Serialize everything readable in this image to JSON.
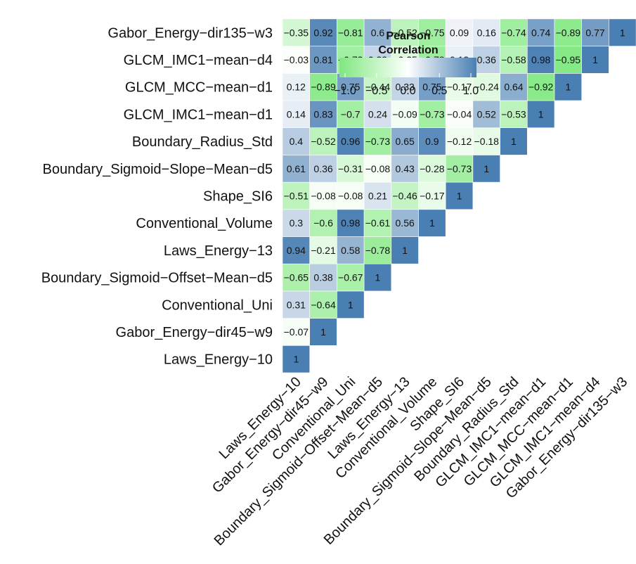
{
  "chart_data": {
    "type": "heatmap",
    "variables": [
      "Laws_Energy-10",
      "Gabor_Energy-dir45-w9",
      "Conventional_Uni",
      "Boundary_Sigmoid-Offset-Mean-d5",
      "Laws_Energy-13",
      "Conventional_Volume",
      "Shape_SI6",
      "Boundary_Sigmoid-Slope-Mean-d5",
      "Boundary_Radius_Std",
      "GLCM_IMC1-mean-d1",
      "GLCM_MCC-mean-d1",
      "GLCM_IMC1-mean-d4",
      "Gabor_Energy-dir135-w3"
    ],
    "rows": [
      [
        1
      ],
      [
        -0.07,
        1
      ],
      [
        0.31,
        -0.64,
        1
      ],
      [
        -0.65,
        0.38,
        -0.67,
        1
      ],
      [
        0.94,
        -0.21,
        0.58,
        -0.78,
        1
      ],
      [
        0.3,
        -0.6,
        0.98,
        -0.61,
        0.56,
        1
      ],
      [
        -0.51,
        -0.08,
        -0.08,
        0.21,
        -0.46,
        -0.17,
        1
      ],
      [
        0.61,
        0.36,
        -0.31,
        -0.08,
        0.43,
        -0.28,
        -0.73,
        1
      ],
      [
        0.4,
        -0.52,
        0.96,
        -0.73,
        0.65,
        0.9,
        -0.12,
        -0.18,
        1
      ],
      [
        0.14,
        0.83,
        -0.7,
        0.24,
        -0.09,
        -0.73,
        -0.04,
        0.52,
        -0.53,
        1
      ],
      [
        0.12,
        -0.89,
        0.75,
        -0.44,
        0.33,
        0.75,
        -0.17,
        -0.24,
        0.64,
        -0.92,
        1
      ],
      [
        -0.03,
        0.81,
        -0.73,
        0.33,
        -0.25,
        -0.78,
        0.12,
        0.36,
        -0.58,
        0.98,
        -0.95,
        1
      ],
      [
        -0.35,
        0.92,
        -0.81,
        0.6,
        -0.52,
        -0.75,
        0.09,
        0.16,
        -0.74,
        0.74,
        -0.89,
        0.77,
        1
      ]
    ],
    "value_range": [
      -1,
      1
    ],
    "legend": {
      "title_line1": "Pearson",
      "title_line2": "Correlation",
      "ticks": [
        "−1.0",
        "−0.5",
        "0.0",
        "0.5",
        "1.0"
      ],
      "tick_values": [
        -1,
        -0.5,
        0,
        0.5,
        1
      ],
      "placement": "top-center"
    },
    "colors": {
      "negative": "#7fe87f",
      "neutral": "#ffffff",
      "positive": "#4a7fb3"
    }
  }
}
